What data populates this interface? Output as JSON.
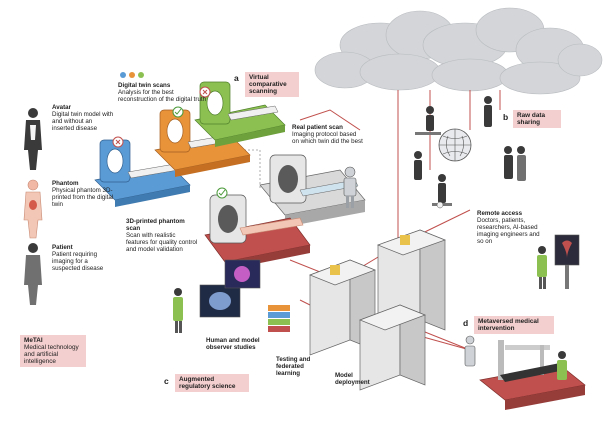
{
  "colors": {
    "dot_blue": "#5b9bd5",
    "dot_orange": "#e8923a",
    "dot_green": "#8cc152",
    "tag_bg": "#f4cfcf",
    "accent_red": "#c0504d"
  },
  "left": {
    "avatar": {
      "title": "Avatar",
      "desc": "Digital twin model with and without an inserted disease"
    },
    "phantom": {
      "title": "Phantom",
      "desc": "Physical phantom 3D-printed from the digital twin"
    },
    "patient": {
      "title": "Patient",
      "desc": "Patient requiring imaging for a suspected disease"
    },
    "metai": {
      "title": "MeTAI",
      "desc": "Medical technology and artificial intelligence"
    }
  },
  "scans": {
    "title": "Digital twin scans",
    "desc": "Analysis for the best reconstruction of the digital truth"
  },
  "a": {
    "letter": "a",
    "tag": "Virtual comparative scanning"
  },
  "b": {
    "letter": "b",
    "tag": "Raw data sharing"
  },
  "c": {
    "letter": "c",
    "tag": "Augmented regulatory science"
  },
  "d": {
    "letter": "d",
    "tag": "Metaversed medical intervention"
  },
  "real_scan": {
    "title": "Real patient scan",
    "desc": "Imaging protocol based on which twin did the best"
  },
  "phantom_scan": {
    "title": "3D-printed phantom scan",
    "desc": "Scan with realistic features for quality control and model validation"
  },
  "remote": {
    "title": "Remote access",
    "desc": "Doctors, patients, researchers, AI-based imaging engineers and so on"
  },
  "observer": "Human and model observer studies",
  "testing": "Testing and federated learning",
  "deployment": "Model deployment"
}
